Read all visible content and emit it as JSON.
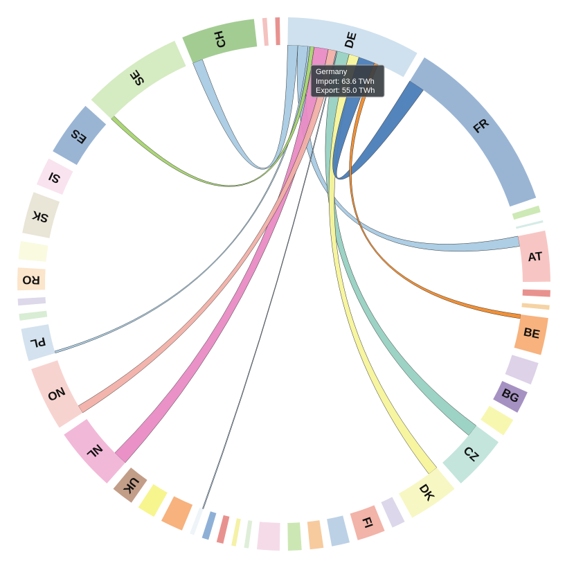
{
  "chart_data": {
    "type": "chord",
    "groups": [
      {
        "name": "DE",
        "color": "#cfe1ee",
        "value": 118.6
      },
      {
        "name": "FR",
        "color": "#9ab5d4",
        "value": 160
      },
      {
        "name": null,
        "color": "#cde9b5",
        "value": 6
      },
      {
        "name": null,
        "color": "#d5ece6",
        "value": 2
      },
      {
        "name": "AT",
        "color": "#f7c6c4",
        "value": 45
      },
      {
        "name": null,
        "color": "#e8928f",
        "value": 6
      },
      {
        "name": null,
        "color": "#f5d3a4",
        "value": 4
      },
      {
        "name": "BE",
        "color": "#f7b27e",
        "value": 33
      },
      {
        "name": null,
        "color": "#ddd2e8",
        "value": 20
      },
      {
        "name": "BG",
        "color": "#a591c2",
        "value": 20
      },
      {
        "name": null,
        "color": "#f7f7b0",
        "value": 16
      },
      {
        "name": "CZ",
        "color": "#c3e5dc",
        "value": 49
      },
      {
        "name": "DK",
        "color": "#f7f7c4",
        "value": 45
      },
      {
        "name": null,
        "color": "#dcd7ea",
        "value": 12
      },
      {
        "name": "FI",
        "color": "#f2b3a8",
        "value": 25
      },
      {
        "name": null,
        "color": "#bcd1e6",
        "value": 16
      },
      {
        "name": null,
        "color": "#f7cb9e",
        "value": 12
      },
      {
        "name": null,
        "color": "#cce7b3",
        "value": 12
      },
      {
        "name": null,
        "color": "#f5dbe8",
        "value": 20
      },
      {
        "name": null,
        "color": "#dfeed9",
        "value": 4
      },
      {
        "name": null,
        "color": "#f5f1a6",
        "value": 4
      },
      {
        "name": null,
        "color": "#e8928f",
        "value": 6
      },
      {
        "name": null,
        "color": "#8fb0d6",
        "value": 6
      },
      {
        "name": null,
        "color": "#eef4f8",
        "value": 4
      },
      {
        "name": null,
        "color": "#f7b27e",
        "value": 20
      },
      {
        "name": null,
        "color": "#f7f58e",
        "value": 16
      },
      {
        "name": "UK",
        "color": "#c29d88",
        "value": 20
      },
      {
        "name": "NL",
        "color": "#f2b8d8",
        "value": 57
      },
      {
        "name": "NO",
        "color": "#f7d3d0",
        "value": 57
      },
      {
        "name": "PL",
        "color": "#d3e2ee",
        "value": 29
      },
      {
        "name": null,
        "color": "#d8edd4",
        "value": 6
      },
      {
        "name": null,
        "color": "#ddd8ea",
        "value": 6
      },
      {
        "name": "RO",
        "color": "#fbe5cb",
        "value": 20
      },
      {
        "name": null,
        "color": "#fafae0",
        "value": 16
      },
      {
        "name": "SK",
        "color": "#e9e5d7",
        "value": 37
      },
      {
        "name": "SI",
        "color": "#f9e3ef",
        "value": 25
      },
      {
        "name": "ES",
        "color": "#9ab5d4",
        "value": 49
      },
      {
        "name": "SE",
        "color": "#d5ebc1",
        "value": 90
      },
      {
        "name": "CH",
        "color": "#a3cc92",
        "value": 65
      },
      {
        "name": null,
        "color": "#f4c2c0",
        "value": 4
      },
      {
        "name": null,
        "color": "#e8928f",
        "value": 4
      }
    ],
    "chords": [
      {
        "source": 0,
        "target": 38,
        "value": 10,
        "color": "#a9cbe3"
      },
      {
        "source": 0,
        "target": 4,
        "value": 10,
        "color": "#a9cbe3"
      },
      {
        "source": 0,
        "target": 29,
        "value": 2,
        "color": "#a9cbe3"
      },
      {
        "source": 0,
        "target": 37,
        "value": 4,
        "color": "#a6d46f"
      },
      {
        "source": 0,
        "target": 27,
        "value": 14,
        "color": "#e98bc4"
      },
      {
        "source": 0,
        "target": 28,
        "value": 8,
        "color": "#f1b0a8"
      },
      {
        "source": 0,
        "target": 23,
        "value": 1,
        "color": "#9fbdd8"
      },
      {
        "source": 0,
        "target": 11,
        "value": 12,
        "color": "#98d1c1"
      },
      {
        "source": 0,
        "target": 12,
        "value": 10,
        "color": "#f7f49a"
      },
      {
        "source": 0,
        "target": 1,
        "value": 16,
        "color": "#4a7db8"
      },
      {
        "source": 0,
        "target": 7,
        "value": 4,
        "color": "#f08a2a"
      }
    ],
    "tooltip": {
      "title": "Germany",
      "rows": [
        {
          "value": 63.6,
          "label": "Import: 63.6 TWh"
        },
        {
          "value": 55.0,
          "label": "Export: 55.0 TWh"
        }
      ]
    }
  }
}
